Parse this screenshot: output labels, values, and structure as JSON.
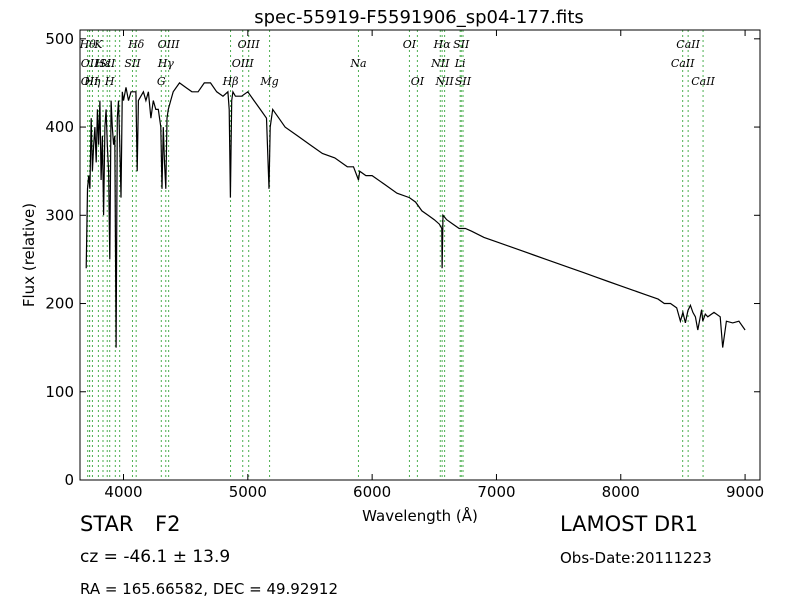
{
  "chart_data": {
    "type": "line",
    "title": "spec-55919-F5591906_sp04-177.fits",
    "xlabel": "Wavelength (Å)",
    "ylabel": "Flux (relative)",
    "xlim": [
      3650,
      9120
    ],
    "ylim": [
      0,
      510
    ],
    "xticks": [
      4000,
      5000,
      6000,
      7000,
      8000,
      9000
    ],
    "yticks": [
      0,
      100,
      200,
      300,
      400,
      500
    ],
    "grid": false,
    "line_color": "#000000",
    "marker_color": "#4caf50",
    "series": [
      {
        "x": [
          3700,
          3710,
          3720,
          3730,
          3740,
          3750,
          3760,
          3770,
          3780,
          3790,
          3800,
          3810,
          3820,
          3830,
          3840,
          3850,
          3860,
          3870,
          3880,
          3890,
          3900,
          3910,
          3920,
          3930,
          3940,
          3950,
          3960,
          3970,
          3980,
          3990,
          4000,
          4020,
          4040,
          4060,
          4080,
          4100,
          4110,
          4120,
          4140,
          4160,
          4180,
          4200,
          4220,
          4240,
          4260,
          4280,
          4300,
          4310,
          4320,
          4330,
          4340,
          4350,
          4360,
          4380,
          4400,
          4450,
          4500,
          4550,
          4600,
          4650,
          4700,
          4750,
          4800,
          4840,
          4850,
          4860,
          4870,
          4880,
          4900,
          4950,
          5000,
          5050,
          5100,
          5150,
          5170,
          5180,
          5200,
          5250,
          5300,
          5400,
          5500,
          5600,
          5700,
          5800,
          5850,
          5890,
          5900,
          5950,
          6000,
          6100,
          6200,
          6300,
          6350,
          6400,
          6450,
          6500,
          6540,
          6560,
          6563,
          6570,
          6600,
          6650,
          6700,
          6750,
          6800,
          6900,
          7000,
          7100,
          7200,
          7300,
          7400,
          7500,
          7600,
          7700,
          7800,
          7900,
          8000,
          8100,
          8200,
          8300,
          8350,
          8400,
          8450,
          8480,
          8500,
          8520,
          8540,
          8560,
          8580,
          8600,
          8620,
          8650,
          8660,
          8680,
          8700,
          8750,
          8800,
          8820,
          8850,
          8900,
          8950,
          9000
        ],
        "y": [
          240,
          330,
          345,
          330,
          410,
          350,
          380,
          400,
          360,
          420,
          380,
          430,
          340,
          390,
          300,
          400,
          420,
          380,
          350,
          250,
          430,
          400,
          380,
          390,
          150,
          410,
          430,
          380,
          320,
          440,
          430,
          445,
          430,
          440,
          440,
          440,
          350,
          430,
          435,
          440,
          430,
          440,
          410,
          430,
          420,
          420,
          400,
          330,
          400,
          360,
          330,
          410,
          420,
          430,
          440,
          450,
          445,
          440,
          440,
          450,
          450,
          440,
          435,
          440,
          420,
          320,
          430,
          440,
          435,
          435,
          440,
          430,
          420,
          410,
          330,
          400,
          420,
          410,
          400,
          390,
          380,
          370,
          365,
          355,
          355,
          340,
          350,
          345,
          345,
          335,
          325,
          320,
          315,
          305,
          300,
          295,
          290,
          285,
          240,
          300,
          295,
          290,
          285,
          285,
          282,
          275,
          270,
          265,
          260,
          255,
          250,
          245,
          240,
          235,
          230,
          225,
          220,
          215,
          210,
          205,
          200,
          200,
          195,
          180,
          190,
          178,
          192,
          198,
          190,
          185,
          170,
          193,
          180,
          188,
          185,
          190,
          185,
          150,
          180,
          178,
          180,
          170
        ]
      }
    ],
    "line_markers": [
      {
        "x": 3712,
        "label": "Hθ",
        "row": 0
      },
      {
        "x": 3727,
        "label": "OII",
        "row": 1
      },
      {
        "x": 3727,
        "label": "OII",
        "row": 2
      },
      {
        "x": 3750,
        "label": "Hη",
        "row": 2
      },
      {
        "x": 3798,
        "label": "K",
        "row": 0
      },
      {
        "x": 3835,
        "label": "Hε",
        "row": 1
      },
      {
        "x": 3889,
        "label": "H",
        "row": 2
      },
      {
        "x": 3869,
        "label": "SII",
        "row": 1
      },
      {
        "x": 3934,
        "label": "",
        "row": -1
      },
      {
        "x": 3969,
        "label": "",
        "row": -1
      },
      {
        "x": 4072,
        "label": "SII",
        "row": 1
      },
      {
        "x": 4102,
        "label": "Hδ",
        "row": 0
      },
      {
        "x": 4304,
        "label": "G",
        "row": 2
      },
      {
        "x": 4340,
        "label": "Hγ",
        "row": 1
      },
      {
        "x": 4363,
        "label": "OIII",
        "row": 0
      },
      {
        "x": 4861,
        "label": "Hβ",
        "row": 2
      },
      {
        "x": 4959,
        "label": "OIII",
        "row": 1
      },
      {
        "x": 5007,
        "label": "OIII",
        "row": 0
      },
      {
        "x": 5175,
        "label": "Mg",
        "row": 2
      },
      {
        "x": 5890,
        "label": "Na",
        "row": 1
      },
      {
        "x": 6300,
        "label": "OI",
        "row": 0
      },
      {
        "x": 6364,
        "label": "OI",
        "row": 2
      },
      {
        "x": 6548,
        "label": "NII",
        "row": 1
      },
      {
        "x": 6563,
        "label": "Hα",
        "row": 0
      },
      {
        "x": 6583,
        "label": "NII",
        "row": 2
      },
      {
        "x": 6717,
        "label": "SII",
        "row": 0
      },
      {
        "x": 6731,
        "label": "SII",
        "row": 2
      },
      {
        "x": 6708,
        "label": "Li",
        "row": 1
      },
      {
        "x": 8498,
        "label": "CaII",
        "row": 1
      },
      {
        "x": 8542,
        "label": "CaII",
        "row": 0
      },
      {
        "x": 8662,
        "label": "CaII",
        "row": 2
      }
    ]
  },
  "info": {
    "object_type": "STAR",
    "object_class": "F2",
    "survey": "LAMOST DR1",
    "cz": "cz = -46.1 ± 13.9",
    "obs_date": "Obs-Date:20111223",
    "radec": "RA = 165.66582, DEC = 49.92912"
  }
}
